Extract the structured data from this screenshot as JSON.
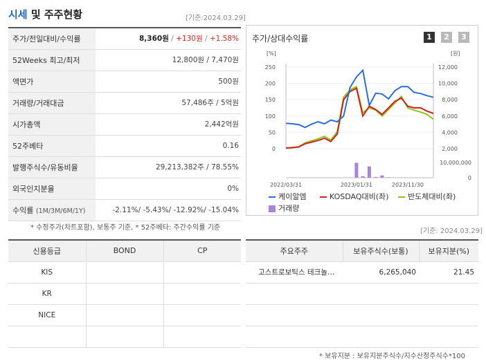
{
  "header": {
    "title_part1": "시세",
    "title_part2": " 및 주주현황",
    "date": "[기준:2024.03.29]"
  },
  "quote_table": [
    {
      "label": "주가/전일대비/수익률",
      "value_price": "8,360원",
      "value_change": "+130원",
      "value_rate": "+1.58%"
    },
    {
      "label": "52Weeks 최고/최저",
      "value": "12,800원 / 7,470원"
    },
    {
      "label": "액면가",
      "value": "500원"
    },
    {
      "label": "거래량/거래대금",
      "value": "57,486주 / 5억원"
    },
    {
      "label": "시가총액",
      "value": "2,442억원"
    },
    {
      "label": "52주베타",
      "value": "0.16"
    },
    {
      "label": "발행주식수/유동비율",
      "value": "29,213,382주 / 78.55%"
    },
    {
      "label": "외국인지분율",
      "value": "0%"
    },
    {
      "label": "수익률",
      "label_sub": "(1M/3M/6M/1Y)",
      "value": "-2.11%/ -5.43%/ -12.92%/ -15.04%"
    }
  ],
  "quote_note": "* 수정주가(차트포함), 보통주 기준, * 52주베타: 주간수익률 기준",
  "chart": {
    "title": "주가/상대수익률",
    "period_buttons": [
      "1",
      "2",
      "3"
    ],
    "left_unit": "[%]",
    "right_unit": "[원]",
    "legend": {
      "company": "케이알엠",
      "kosdaq": "KOSDAQ대비(좌)",
      "sector": "반도체대비(좌)",
      "volume": "거래량"
    },
    "colors": {
      "company": "#2a6ddc",
      "kosdaq": "#d0231c",
      "sector": "#8fc31f",
      "volume": "#a686d8"
    }
  },
  "chart_data": {
    "type": "line",
    "x_ticks": [
      "2022/03/31",
      "2023/01/31",
      "2023/11/30"
    ],
    "left_axis": {
      "ticks": [
        "250",
        "200",
        "150",
        "100",
        "50",
        "0"
      ],
      "ylim": [
        0,
        250
      ]
    },
    "right_axis": {
      "ticks": [
        "12,000",
        "10,000",
        "8,000",
        "6,000",
        "4,000",
        "2,000"
      ],
      "ylim": [
        2000,
        12000
      ]
    },
    "volume_axis": {
      "ticks": [
        "10,000,000",
        "0"
      ],
      "ylim": [
        0,
        10000000
      ]
    },
    "series": [
      {
        "name": "케이알엠",
        "axis": "right",
        "values": [
          5100,
          5050,
          4950,
          4600,
          5000,
          5300,
          5050,
          5500,
          5300,
          6000,
          9500,
          10800,
          11600,
          7300,
          8800,
          8700,
          8100,
          9100,
          9600,
          9600,
          8900,
          8750,
          8500,
          8300
        ]
      },
      {
        "name": "KOSDAQ대비(좌)",
        "axis": "left",
        "values": [
          2,
          3,
          5,
          15,
          20,
          25,
          32,
          22,
          45,
          150,
          175,
          185,
          100,
          130,
          120,
          105,
          125,
          145,
          155,
          130,
          125,
          125,
          115,
          108
        ]
      },
      {
        "name": "반도체대비(좌)",
        "axis": "left",
        "values": [
          2,
          4,
          6,
          18,
          24,
          30,
          38,
          26,
          52,
          158,
          180,
          190,
          110,
          125,
          118,
          100,
          120,
          140,
          160,
          125,
          118,
          112,
          105,
          90
        ]
      }
    ],
    "volume": [
      0,
      0,
      0,
      0,
      0,
      0,
      0,
      0,
      0,
      0,
      0,
      9800000,
      900000,
      7400000,
      500000,
      1500000,
      300000,
      0,
      0,
      0,
      0,
      0,
      0,
      0
    ]
  },
  "credit_table": {
    "headers": [
      "신용등급",
      "BOND",
      "CP"
    ],
    "rows": [
      {
        "agency": "KIS",
        "bond": "",
        "cp": ""
      },
      {
        "agency": "KR",
        "bond": "",
        "cp": ""
      },
      {
        "agency": "NICE",
        "bond": "",
        "cp": ""
      },
      {
        "agency": "",
        "bond": "",
        "cp": ""
      }
    ]
  },
  "holder_date": "[기준: 2024.03.29]",
  "holder_table": {
    "headers": [
      "주요주주",
      "보유주식수(보통)",
      "보유지분(%)"
    ],
    "rows": [
      {
        "name": "고스트로보틱스 테크놀…",
        "shares": "6,265,040",
        "pct": "21.45"
      },
      {
        "name": "",
        "shares": "",
        "pct": ""
      },
      {
        "name": "",
        "shares": "",
        "pct": ""
      },
      {
        "name": "",
        "shares": "",
        "pct": ""
      }
    ]
  },
  "holder_note": "* 보유지분 : 보유지분주식수/지수산정주식수*100"
}
